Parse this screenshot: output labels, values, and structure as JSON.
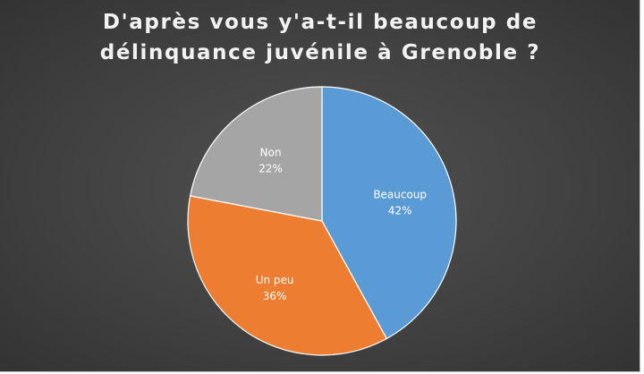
{
  "chart_data": {
    "type": "pie",
    "title_lines": [
      "D'après vous y'a-t-il beaucoup de",
      "délinquance juvénile à Grenoble ?"
    ],
    "slices": [
      {
        "label": "Beaucoup",
        "value": 42,
        "value_label": "42%",
        "color": "#5b9bd5"
      },
      {
        "label": "Un peu",
        "value": 36,
        "value_label": "36%",
        "color": "#ed7d31"
      },
      {
        "label": "Non",
        "value": 22,
        "value_label": "22%",
        "color": "#a5a5a5"
      }
    ],
    "start_angle": "12 o'clock, clockwise",
    "legend": "none",
    "background_color": "#404040",
    "title_color": "#f2f2f2",
    "label_color": "#ffffff"
  }
}
